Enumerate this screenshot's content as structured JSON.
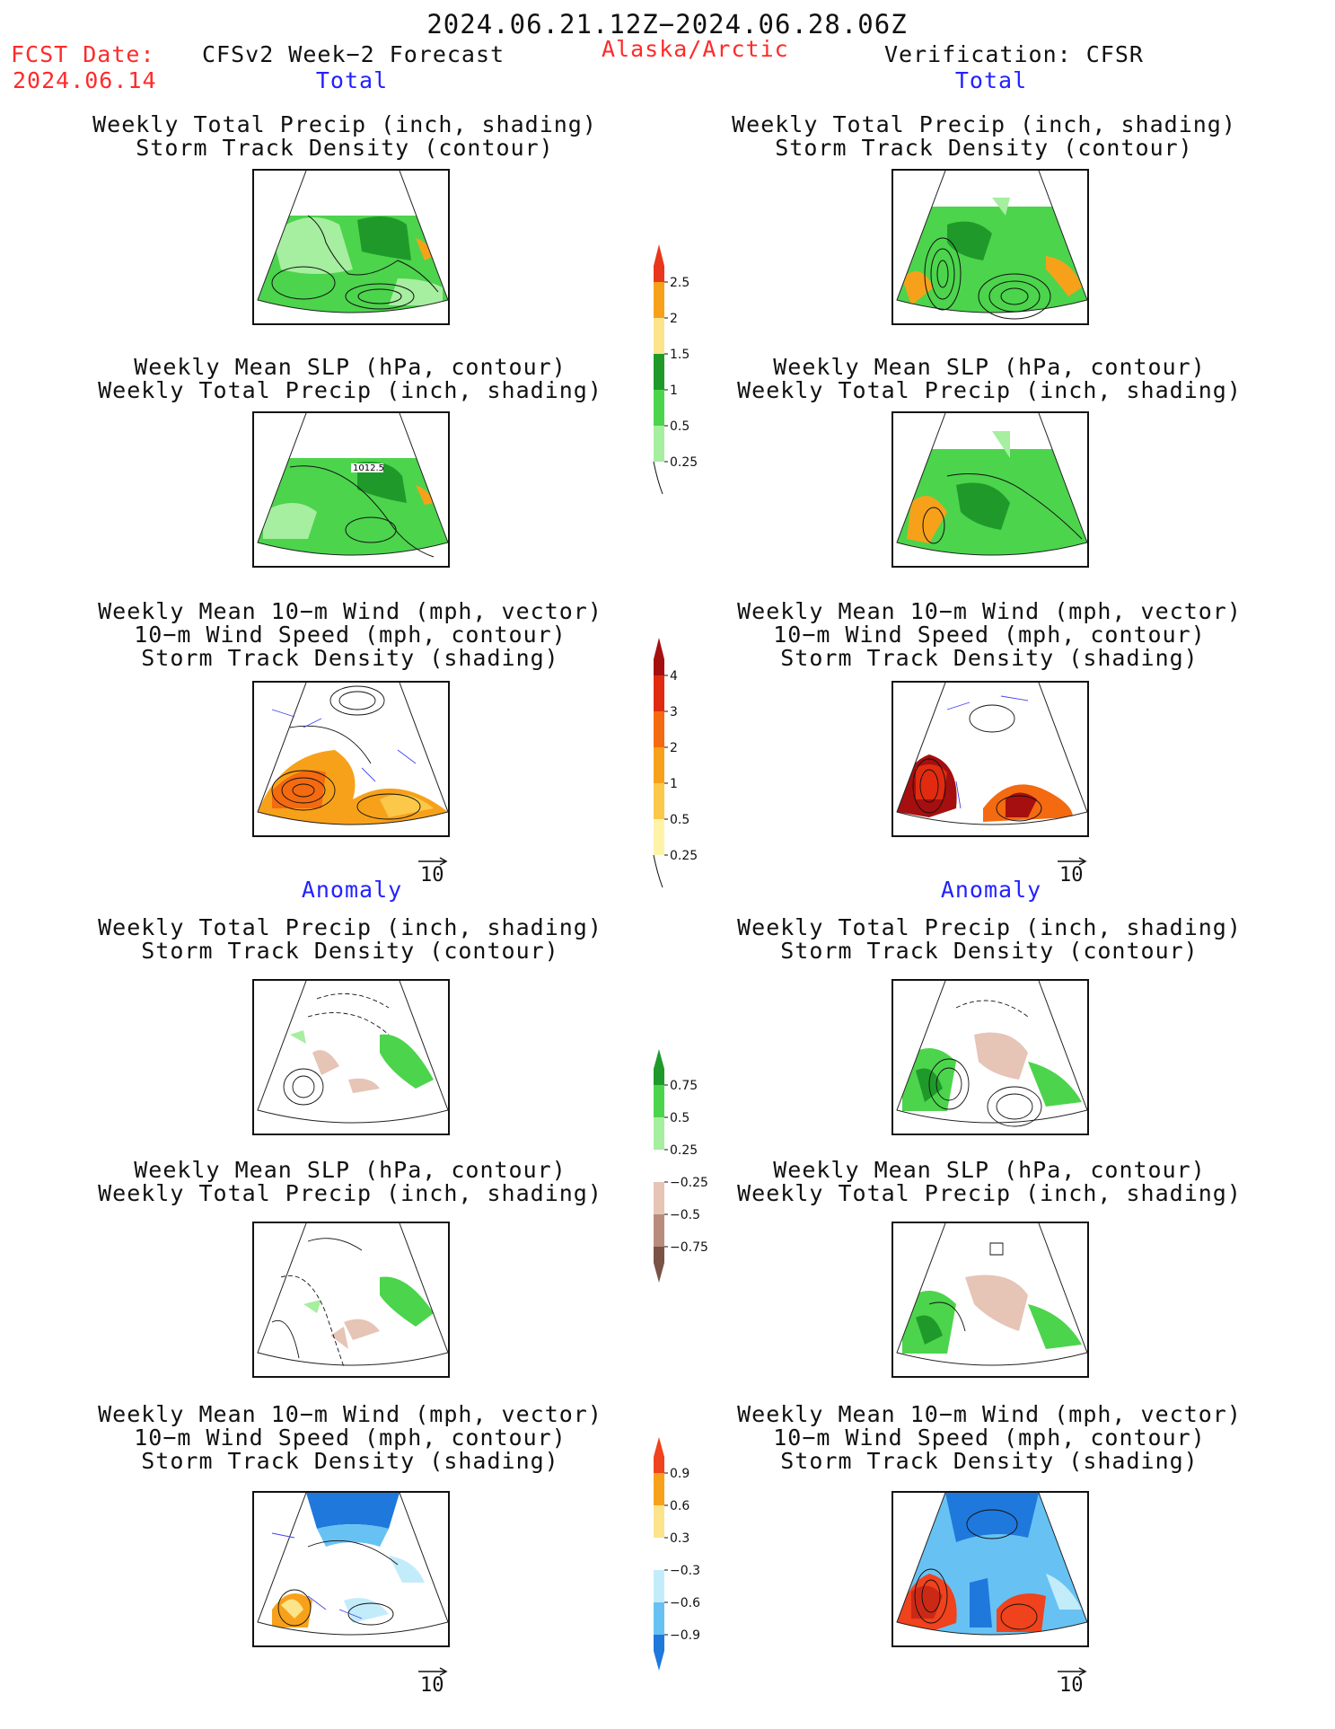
{
  "header": {
    "valid_period": "2024.06.21.12Z−2024.06.28.06Z",
    "fcst_date_label": "FCST Date:",
    "fcst_date": "2024.06.14",
    "model_title": "CFSv2 Week−2 Forecast",
    "region": "Alaska/Arctic",
    "verification": "Verification: CFSR"
  },
  "sections": {
    "total": "Total",
    "anomaly": "Anomaly"
  },
  "panel_titles": {
    "precip_storm": [
      "Weekly Total Precip (inch, shading)",
      "Storm Track Density (contour)"
    ],
    "slp_precip": [
      "Weekly Mean SLP (hPa, contour)",
      "Weekly Total Precip (inch, shading)"
    ],
    "wind_storm": [
      "Weekly Mean 10−m Wind (mph, vector)",
      "10−m Wind Speed (mph, contour)",
      "Storm Track Density (shading)"
    ]
  },
  "vector_reference": "10",
  "contour_label": "1012.5",
  "colorbars": {
    "precip_total": {
      "labels": [
        "2.5",
        "2",
        "1.5",
        "1",
        "0.5",
        "0.25"
      ],
      "colors": [
        "#e8371c",
        "#f7a11a",
        "#fbe48a",
        "#1f9a2a",
        "#4cd44c",
        "#a6eea0"
      ]
    },
    "storm_total": {
      "labels": [
        "4",
        "3",
        "2",
        "1",
        "0.5",
        "0.25"
      ],
      "colors": [
        "#a50f0f",
        "#e02b10",
        "#f46a10",
        "#f7a11a",
        "#fbc84a",
        "#fff3a8"
      ]
    },
    "precip_anomaly": {
      "labels": [
        "0.75",
        "0.5",
        "0.25",
        "−0.25",
        "−0.5",
        "−0.75"
      ],
      "colors": [
        "#1f9a2a",
        "#4cd44c",
        "#a6eea0",
        "#ffffff",
        "#e6c4b6",
        "#b78c7c",
        "#7a5346"
      ]
    },
    "storm_anomaly": {
      "labels": [
        "0.9",
        "0.6",
        "0.3",
        "−0.3",
        "−0.6",
        "−0.9"
      ],
      "colors": [
        "#f0421c",
        "#f7a11a",
        "#fbe48a",
        "#ffffff",
        "#c3ecfb",
        "#67c2f3",
        "#1f78dc"
      ]
    }
  }
}
